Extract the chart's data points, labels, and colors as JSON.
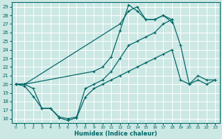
{
  "xlabel": "Humidex (Indice chaleur)",
  "background_color": "#cce8e4",
  "grid_color": "#ffffff",
  "line_color": "#006666",
  "xlim": [
    -0.5,
    23.5
  ],
  "ylim": [
    15.5,
    29.5
  ],
  "xticks": [
    0,
    1,
    2,
    3,
    4,
    5,
    6,
    7,
    8,
    9,
    10,
    11,
    12,
    13,
    14,
    15,
    16,
    17,
    18,
    19,
    20,
    21,
    22,
    23
  ],
  "yticks": [
    16,
    17,
    18,
    19,
    20,
    21,
    22,
    23,
    24,
    25,
    26,
    27,
    28,
    29
  ],
  "series_points": [
    [
      [
        0,
        20.0
      ],
      [
        1,
        20.0
      ],
      [
        2,
        19.5
      ],
      [
        3,
        17.2
      ],
      [
        4,
        17.2
      ],
      [
        5,
        16.2
      ],
      [
        6,
        16.0
      ],
      [
        7,
        16.2
      ],
      [
        8,
        19.5
      ],
      [
        9,
        20.0
      ],
      [
        10,
        20.5
      ],
      [
        11,
        21.5
      ],
      [
        12,
        23.0
      ],
      [
        13,
        24.5
      ],
      [
        14,
        25.0
      ],
      [
        15,
        25.5
      ],
      [
        16,
        26.0
      ],
      [
        17,
        27.0
      ],
      [
        18,
        27.5
      ],
      [
        19,
        24.5
      ],
      [
        20,
        20.0
      ],
      [
        21,
        21.0
      ],
      [
        22,
        20.5
      ],
      [
        23,
        20.5
      ]
    ],
    [
      [
        0,
        20.0
      ],
      [
        1,
        19.8
      ],
      [
        2,
        18.6
      ],
      [
        3,
        17.2
      ],
      [
        4,
        17.2
      ],
      [
        5,
        16.1
      ],
      [
        6,
        15.8
      ],
      [
        7,
        16.1
      ],
      [
        8,
        18.5
      ],
      [
        9,
        19.5
      ],
      [
        10,
        20.0
      ],
      [
        11,
        20.5
      ],
      [
        12,
        21.0
      ],
      [
        13,
        21.5
      ],
      [
        14,
        22.0
      ],
      [
        15,
        22.5
      ],
      [
        16,
        23.0
      ],
      [
        17,
        23.5
      ],
      [
        18,
        24.0
      ],
      [
        19,
        20.5
      ],
      [
        20,
        20.0
      ],
      [
        21,
        20.5
      ],
      [
        22,
        20.0
      ],
      [
        23,
        20.5
      ]
    ],
    [
      [
        0,
        20.0
      ],
      [
        1,
        20.0
      ],
      [
        9,
        21.5
      ],
      [
        10,
        22.0
      ],
      [
        11,
        23.2
      ],
      [
        12,
        26.2
      ],
      [
        13,
        29.2
      ],
      [
        14,
        28.5
      ],
      [
        15,
        27.5
      ],
      [
        16,
        27.5
      ],
      [
        17,
        28.0
      ],
      [
        18,
        27.2
      ]
    ],
    [
      [
        0,
        20.0
      ],
      [
        1,
        20.0
      ],
      [
        12,
        27.0
      ],
      [
        13,
        28.5
      ],
      [
        14,
        29.0
      ],
      [
        15,
        27.5
      ],
      [
        16,
        27.5
      ],
      [
        17,
        28.0
      ],
      [
        18,
        27.5
      ]
    ]
  ]
}
